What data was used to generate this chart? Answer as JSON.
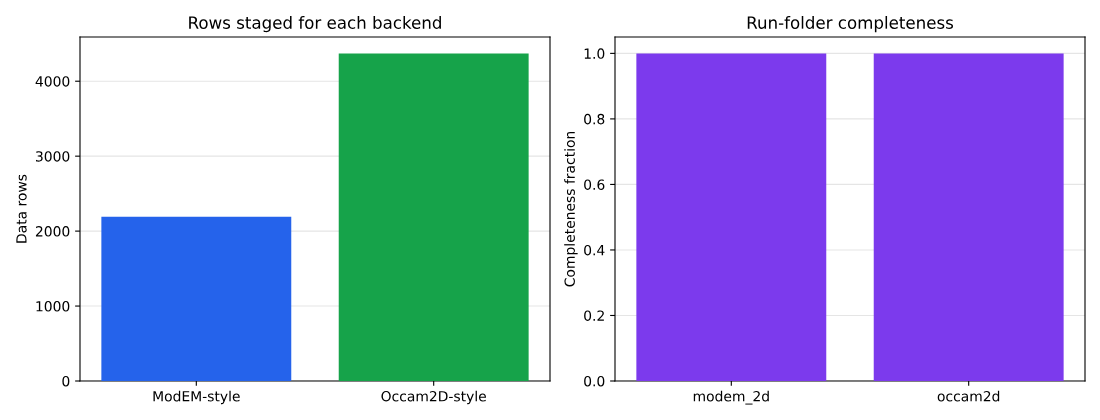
{
  "chart_data": [
    {
      "type": "bar",
      "title": "Rows staged for each backend",
      "ylabel": "Data rows",
      "categories": [
        "ModEM-style",
        "Occam2D-style"
      ],
      "values": [
        2190,
        4370
      ],
      "colors": [
        "#2563eb",
        "#16a34a"
      ],
      "ylim": [
        0,
        4590
      ],
      "yticks": [
        0,
        1000,
        2000,
        3000,
        4000
      ],
      "grid": "y"
    },
    {
      "type": "bar",
      "title": "Run-folder completeness",
      "ylabel": "Completeness fraction",
      "categories": [
        "modem_2d",
        "occam2d"
      ],
      "values": [
        1.0,
        1.0
      ],
      "colors": [
        "#7c3aed",
        "#7c3aed"
      ],
      "ylim": [
        0,
        1.05
      ],
      "yticks": [
        {
          "value": 0,
          "label": "0.0"
        },
        0.2,
        0.4,
        0.6,
        0.8,
        {
          "value": 1,
          "label": "1.0"
        }
      ],
      "grid": "y"
    }
  ]
}
